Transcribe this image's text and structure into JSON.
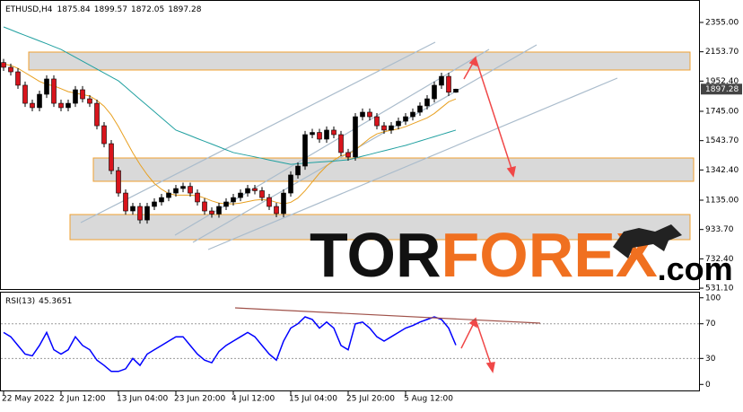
{
  "chart_data": [
    {
      "type": "candlestick",
      "title": "ETHUSD,H4",
      "categories": [
        "22 May 2022",
        null,
        null,
        null,
        null,
        null,
        null,
        null,
        "2 Jun 12:00",
        null,
        null,
        null,
        null,
        null,
        null,
        null,
        "13 Jun 04:00",
        null,
        null,
        null,
        null,
        null,
        null,
        null,
        "23 Jun 20:00",
        null,
        null,
        null,
        null,
        null,
        null,
        null,
        "4 Jul 12:00",
        null,
        null,
        null,
        null,
        null,
        null,
        null,
        "15 Jul 04:00",
        null,
        null,
        null,
        null,
        null,
        null,
        null,
        "25 Jul 20:00",
        null,
        null,
        null,
        null,
        null,
        null,
        null,
        "5 Aug 12:00",
        null,
        null,
        null,
        null,
        null,
        null,
        null
      ],
      "open": [
        2080,
        2047,
        2016,
        1924,
        1800,
        1770,
        1862,
        1967,
        1800,
        1770,
        1800,
        1893,
        1831,
        1800,
        1646,
        1523,
        1338,
        1184,
        1061,
        1092,
        999,
        1092,
        1123,
        1153,
        1184,
        1215,
        1230,
        1184,
        1123,
        1061,
        1040,
        1092,
        1123,
        1153,
        1184,
        1215,
        1200,
        1153,
        1092,
        1043,
        1184,
        1308,
        1369,
        1585,
        1600,
        1554,
        1616,
        1585,
        1462,
        1431,
        1708,
        1739,
        1708,
        1646,
        1616,
        1646,
        1677,
        1708,
        1739,
        1782,
        1831,
        1924,
        1985,
        1875.84
      ],
      "high": [
        2105,
        2072,
        2041,
        1949,
        1825,
        1887,
        1992,
        1992,
        1825,
        1825,
        1918,
        1918,
        1856,
        1825,
        1671,
        1548,
        1363,
        1209,
        1117,
        1117,
        1117,
        1148,
        1178,
        1209,
        1240,
        1255,
        1255,
        1209,
        1148,
        1086,
        1117,
        1148,
        1178,
        1209,
        1240,
        1240,
        1225,
        1178,
        1117,
        1209,
        1333,
        1394,
        1610,
        1625,
        1625,
        1641,
        1641,
        1610,
        1487,
        1733,
        1764,
        1764,
        1733,
        1671,
        1671,
        1702,
        1733,
        1764,
        1807,
        1856,
        1949,
        2010,
        2010,
        1899.57
      ],
      "low": [
        2022,
        1991,
        1899,
        1775,
        1745,
        1745,
        1837,
        1775,
        1745,
        1745,
        1775,
        1806,
        1775,
        1621,
        1498,
        1313,
        1159,
        1036,
        1036,
        974,
        974,
        1067,
        1098,
        1128,
        1159,
        1190,
        1159,
        1098,
        1036,
        1015,
        1015,
        1067,
        1098,
        1128,
        1159,
        1175,
        1128,
        1067,
        1018,
        1018,
        1159,
        1283,
        1344,
        1560,
        1529,
        1529,
        1560,
        1437,
        1406,
        1406,
        1683,
        1683,
        1621,
        1591,
        1591,
        1621,
        1652,
        1683,
        1714,
        1757,
        1806,
        1899,
        1850,
        1872.05
      ],
      "close": [
        2047,
        2016,
        1924,
        1800,
        1770,
        1862,
        1967,
        1800,
        1770,
        1800,
        1893,
        1831,
        1800,
        1646,
        1523,
        1338,
        1184,
        1061,
        1092,
        999,
        1092,
        1123,
        1153,
        1184,
        1215,
        1230,
        1184,
        1123,
        1061,
        1040,
        1092,
        1123,
        1153,
        1184,
        1215,
        1200,
        1153,
        1092,
        1043,
        1184,
        1308,
        1369,
        1585,
        1600,
        1554,
        1616,
        1585,
        1462,
        1431,
        1708,
        1739,
        1708,
        1646,
        1616,
        1646,
        1677,
        1708,
        1739,
        1782,
        1831,
        1924,
        1985,
        1875.84,
        1897.28
      ],
      "up_color": "#000000",
      "down_color": "#d8141c",
      "lines": [
        {
          "color": "#e8a020",
          "values": [
            2070,
            2060,
            2040,
            2010,
            1980,
            1950,
            1930,
            1920,
            1900,
            1880,
            1870,
            1860,
            1850,
            1820,
            1780,
            1720,
            1640,
            1550,
            1460,
            1380,
            1310,
            1250,
            1210,
            1180,
            1170,
            1170,
            1170,
            1165,
            1150,
            1130,
            1115,
            1110,
            1110,
            1115,
            1125,
            1135,
            1140,
            1135,
            1120,
            1110,
            1120,
            1150,
            1200,
            1260,
            1320,
            1370,
            1410,
            1440,
            1450,
            1480,
            1520,
            1560,
            1590,
            1605,
            1615,
            1625,
            1640,
            1660,
            1680,
            1700,
            1730,
            1770,
            1810,
            1830
          ]
        },
        {
          "color": "#20a0a0",
          "values": [
            2324,
            2305,
            2285,
            2266,
            2247,
            2228,
            2209,
            2189,
            2170,
            2143,
            2116,
            2089,
            2062,
            2035,
            2008,
            1981,
            1954,
            1912,
            1869,
            1827,
            1785,
            1743,
            1700,
            1658,
            1616,
            1597,
            1578,
            1558,
            1539,
            1520,
            1501,
            1481,
            1462,
            1452,
            1442,
            1432,
            1422,
            1411,
            1401,
            1391,
            1381,
            1385,
            1389,
            1393,
            1397,
            1400,
            1404,
            1408,
            1412,
            1424,
            1437,
            1449,
            1462,
            1474,
            1486,
            1499,
            1511,
            1526,
            1541,
            1556,
            1571,
            1586,
            1601,
            1616
          ]
        }
      ],
      "ylim": [
        519,
        2509
      ],
      "yticks": [
        {
          "value": 2355,
          "label": "2355.00"
        },
        {
          "value": 2153.7,
          "label": "2153.70"
        },
        {
          "value": 1952.4,
          "label": "1952.40"
        },
        {
          "value": 1745,
          "label": "1745.00"
        },
        {
          "value": 1543.7,
          "label": "1543.70"
        },
        {
          "value": 1342.4,
          "label": "1342.40"
        },
        {
          "value": 1135,
          "label": "1135.00"
        },
        {
          "value": 933.7,
          "label": "933.70"
        },
        {
          "value": 732.4,
          "label": "732.40"
        },
        {
          "value": 531.1,
          "label": "531.10"
        }
      ],
      "watermark": [
        "TOR",
        "FOREX",
        ".com"
      ]
    },
    {
      "type": "line",
      "title": "RSI(13)",
      "color": "#0000ff",
      "values": [
        60,
        55,
        45,
        35,
        33,
        45,
        60,
        40,
        35,
        40,
        55,
        45,
        40,
        28,
        22,
        15,
        15,
        18,
        30,
        22,
        35,
        40,
        45,
        50,
        55,
        55,
        45,
        35,
        28,
        25,
        38,
        45,
        50,
        55,
        60,
        55,
        45,
        35,
        28,
        50,
        65,
        70,
        78,
        75,
        65,
        72,
        65,
        45,
        40,
        70,
        72,
        65,
        55,
        50,
        55,
        60,
        65,
        68,
        72,
        75,
        78,
        75,
        65,
        45.3651
      ],
      "ylim": [
        -8,
        107
      ],
      "yticks": [
        100,
        70,
        30,
        0
      ],
      "levels": [
        70,
        30
      ]
    }
  ]
}
